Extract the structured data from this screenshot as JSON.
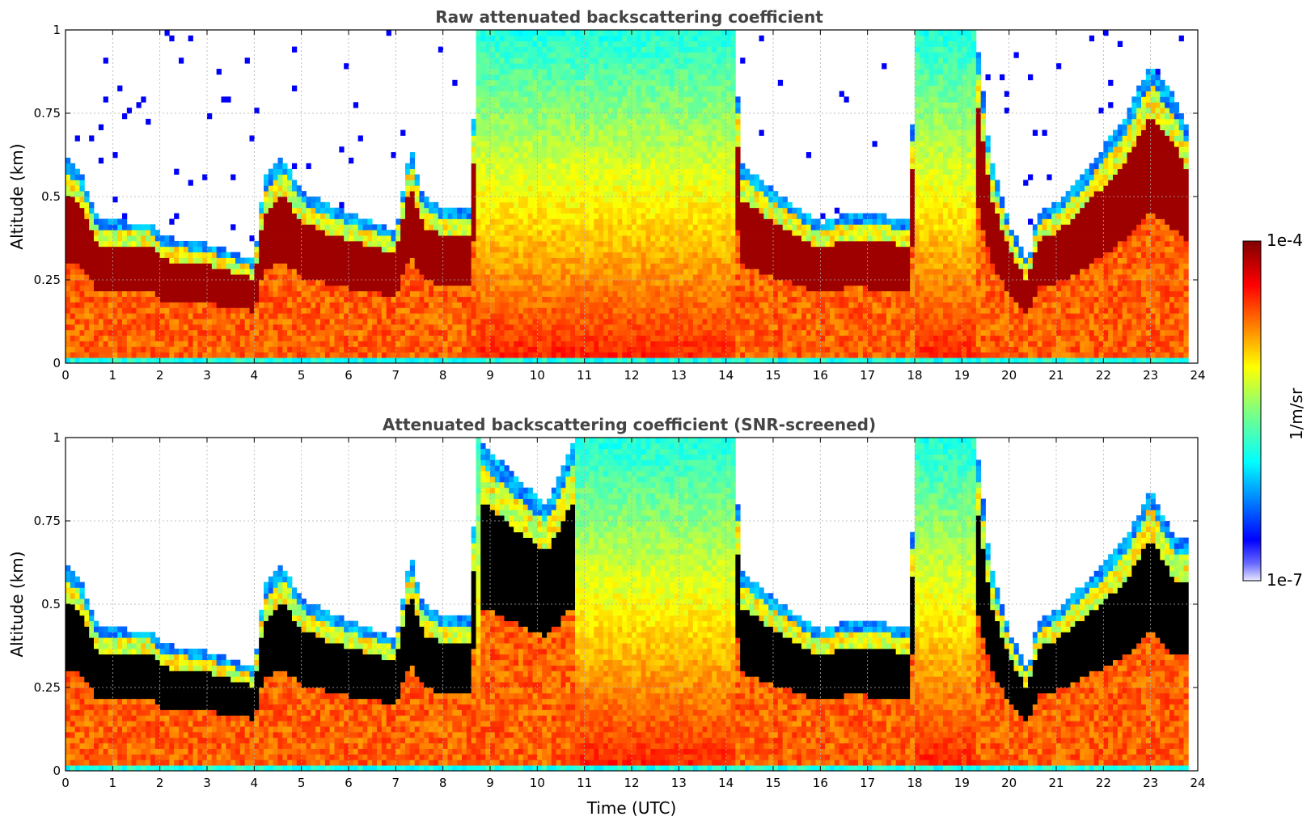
{
  "chart_data": [
    {
      "type": "heatmap",
      "title": "Raw attenuated backscattering coefficient",
      "xlabel": "",
      "ylabel": "Altitude (km)",
      "xlim": [
        0,
        24
      ],
      "ylim": [
        0,
        1
      ],
      "x_ticks": [
        "0",
        "1",
        "2",
        "3",
        "4",
        "5",
        "6",
        "7",
        "8",
        "9",
        "10",
        "11",
        "12",
        "13",
        "14",
        "15",
        "16",
        "17",
        "18",
        "19",
        "20",
        "21",
        "22",
        "23",
        "24"
      ],
      "y_ticks": [
        "0",
        "0.25",
        "0.5",
        "0.75",
        "1"
      ],
      "grid": true,
      "screened": false,
      "colorscale": "jet",
      "boundary_layer_top_km": [
        [
          0,
          0.62
        ],
        [
          0.3,
          0.58
        ],
        [
          0.7,
          0.43
        ],
        [
          1.9,
          0.42
        ],
        [
          2,
          0.38
        ],
        [
          3,
          0.36
        ],
        [
          4,
          0.31
        ],
        [
          4.2,
          0.55
        ],
        [
          4.6,
          0.62
        ],
        [
          5,
          0.52
        ],
        [
          5.5,
          0.48
        ],
        [
          6,
          0.45
        ],
        [
          7,
          0.4
        ],
        [
          7.3,
          0.65
        ],
        [
          7.6,
          0.5
        ],
        [
          8,
          0.47
        ],
        [
          8.6,
          0.47
        ],
        [
          8.7,
          1.0
        ],
        [
          14.2,
          1.0
        ],
        [
          14.3,
          0.6
        ],
        [
          15,
          0.52
        ],
        [
          15.5,
          0.47
        ],
        [
          16,
          0.42
        ],
        [
          16.5,
          0.45
        ],
        [
          17,
          0.45
        ],
        [
          17.9,
          0.43
        ],
        [
          18,
          1.0
        ],
        [
          19.3,
          1.0
        ],
        [
          19.6,
          0.62
        ],
        [
          20,
          0.42
        ],
        [
          20.4,
          0.3
        ],
        [
          20.6,
          0.45
        ],
        [
          21,
          0.48
        ],
        [
          21.5,
          0.55
        ],
        [
          22,
          0.65
        ],
        [
          22.5,
          0.75
        ],
        [
          23,
          0.9
        ],
        [
          23.5,
          0.8
        ],
        [
          23.8,
          0.7
        ],
        [
          24,
          0.65
        ]
      ]
    },
    {
      "type": "heatmap",
      "title": "Attenuated backscattering coefficient (SNR-screened)",
      "xlabel": "Time (UTC)",
      "ylabel": "Altitude (km)",
      "xlim": [
        0,
        24
      ],
      "ylim": [
        0,
        1
      ],
      "x_ticks": [
        "0",
        "1",
        "2",
        "3",
        "4",
        "5",
        "6",
        "7",
        "8",
        "9",
        "10",
        "11",
        "12",
        "13",
        "14",
        "15",
        "16",
        "17",
        "18",
        "19",
        "20",
        "21",
        "22",
        "23",
        "24"
      ],
      "y_ticks": [
        "0",
        "0.25",
        "0.5",
        "0.75",
        "1"
      ],
      "grid": true,
      "screened": true,
      "colorscale": "jet",
      "boundary_layer_top_km": [
        [
          0,
          0.62
        ],
        [
          0.3,
          0.58
        ],
        [
          0.7,
          0.43
        ],
        [
          1.9,
          0.42
        ],
        [
          2,
          0.38
        ],
        [
          3,
          0.36
        ],
        [
          4,
          0.31
        ],
        [
          4.2,
          0.55
        ],
        [
          4.6,
          0.62
        ],
        [
          5,
          0.52
        ],
        [
          5.5,
          0.48
        ],
        [
          6,
          0.45
        ],
        [
          7,
          0.4
        ],
        [
          7.3,
          0.65
        ],
        [
          7.6,
          0.5
        ],
        [
          8,
          0.47
        ],
        [
          8.6,
          0.47
        ],
        [
          8.7,
          1.0
        ],
        [
          9.8,
          0.85
        ],
        [
          10.2,
          0.8
        ],
        [
          10.8,
          1.0
        ],
        [
          14.2,
          1.0
        ],
        [
          14.3,
          0.6
        ],
        [
          15,
          0.52
        ],
        [
          15.5,
          0.47
        ],
        [
          16,
          0.42
        ],
        [
          16.5,
          0.45
        ],
        [
          17,
          0.45
        ],
        [
          17.9,
          0.43
        ],
        [
          18,
          1.0
        ],
        [
          19.3,
          1.0
        ],
        [
          19.6,
          0.62
        ],
        [
          20,
          0.42
        ],
        [
          20.4,
          0.3
        ],
        [
          20.6,
          0.45
        ],
        [
          21,
          0.48
        ],
        [
          21.5,
          0.55
        ],
        [
          22,
          0.62
        ],
        [
          22.5,
          0.7
        ],
        [
          23,
          0.85
        ],
        [
          23.5,
          0.7
        ],
        [
          23.8,
          0.7
        ],
        [
          24,
          0.65
        ]
      ]
    }
  ],
  "colorbar": {
    "max_label": "1e-4",
    "min_label": "1e-7",
    "unit_label": "1/m/sr"
  }
}
